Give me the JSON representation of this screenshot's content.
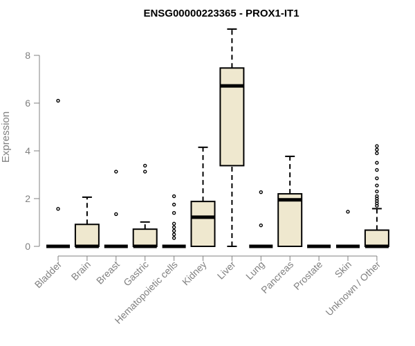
{
  "chart_data": {
    "type": "box",
    "title": "ENSG00000223365 - PROX1-IT1",
    "ylabel": "Expression",
    "xlabel": "",
    "ylim": [
      0,
      9.2
    ],
    "yticks": [
      0,
      2,
      4,
      6,
      8
    ],
    "box_fill": "#EFE8CF",
    "categories": [
      "Bladder",
      "Brain",
      "Breast",
      "Gastric",
      "Hematopoietic cells",
      "Kidney",
      "Liver",
      "Lung",
      "Pancreas",
      "Prostate",
      "Skin",
      "Unknown / Other"
    ],
    "boxes": [
      {
        "min": 0,
        "q1": 0,
        "median": 0,
        "q3": 0,
        "max": 0,
        "outliers": [
          1.57,
          6.1
        ]
      },
      {
        "min": 0,
        "q1": 0,
        "median": 0,
        "q3": 0.92,
        "max": 2.06,
        "outliers": []
      },
      {
        "min": 0,
        "q1": 0,
        "median": 0,
        "q3": 0,
        "max": 0,
        "outliers": [
          1.35,
          3.13
        ]
      },
      {
        "min": 0,
        "q1": 0,
        "median": 0,
        "q3": 0.72,
        "max": 1.02,
        "outliers": [
          3.13,
          3.38
        ]
      },
      {
        "min": 0,
        "q1": 0,
        "median": 0,
        "q3": 0,
        "max": 0,
        "outliers": [
          0.35,
          0.5,
          0.65,
          0.8,
          0.95,
          1.4,
          1.75,
          2.1
        ]
      },
      {
        "min": 0,
        "q1": 0,
        "median": 1.22,
        "q3": 1.88,
        "max": 4.15,
        "outliers": []
      },
      {
        "min": 0,
        "q1": 3.38,
        "median": 6.72,
        "q3": 7.47,
        "max": 9.1,
        "outliers": []
      },
      {
        "min": 0,
        "q1": 0,
        "median": 0,
        "q3": 0,
        "max": 0,
        "outliers": [
          0.88,
          2.27
        ]
      },
      {
        "min": 0,
        "q1": 0,
        "median": 1.95,
        "q3": 2.2,
        "max": 3.77,
        "outliers": []
      },
      {
        "min": 0,
        "q1": 0,
        "median": 0,
        "q3": 0,
        "max": 0,
        "outliers": []
      },
      {
        "min": 0,
        "q1": 0,
        "median": 0,
        "q3": 0,
        "max": 0,
        "outliers": [
          1.45
        ]
      },
      {
        "min": 0,
        "q1": 0,
        "median": 0,
        "q3": 0.68,
        "max": 1.58,
        "outliers": [
          1.7,
          1.8,
          1.9,
          2.0,
          2.1,
          2.3,
          2.55,
          2.85,
          3.2,
          3.5,
          3.9,
          4.05,
          4.2
        ]
      }
    ]
  }
}
